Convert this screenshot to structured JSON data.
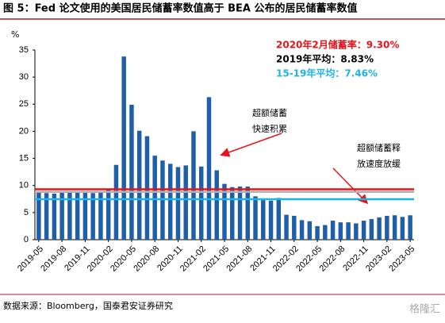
{
  "chart_data": {
    "type": "bar",
    "title": "图 5：Fed 论文使用的美国居民储蓄率数值高于 BEA 公布的居民储蓄率数值",
    "unit": "%",
    "source": "数据来源：Bloomberg，国泰君安证券研究",
    "watermark": "格隆汇",
    "categories": [
      "2019-05",
      null,
      null,
      "2019-08",
      null,
      null,
      "2019-11",
      null,
      null,
      "2020-02",
      null,
      null,
      "2020-05",
      null,
      null,
      "2020-08",
      null,
      null,
      "2020-11",
      null,
      null,
      "2021-02",
      null,
      null,
      "2021-05",
      null,
      null,
      "2021-08",
      null,
      null,
      "2021-11",
      null,
      null,
      "2022-02",
      null,
      null,
      "2022-05",
      null,
      null,
      "2022-08",
      null,
      null,
      "2022-11",
      null,
      null,
      "2023-02",
      null,
      null,
      "2023-05"
    ],
    "values": [
      8.8,
      8.6,
      8.5,
      8.7,
      8.8,
      8.7,
      8.7,
      8.6,
      8.9,
      9.2,
      13.8,
      33.8,
      24.9,
      20.1,
      19.1,
      15.5,
      14.6,
      14.0,
      13.4,
      13.7,
      20.0,
      13.5,
      26.3,
      12.8,
      10.3,
      9.7,
      9.8,
      9.8,
      8.0,
      7.3,
      7.2,
      7.7,
      4.6,
      4.4,
      3.6,
      3.4,
      2.5,
      2.7,
      3.5,
      3.2,
      3.2,
      3.0,
      3.5,
      3.8,
      4.1,
      4.4,
      4.5,
      4.2,
      4.5
    ],
    "color": "#1f5ea8",
    "ylim": [
      0,
      35
    ],
    "yticks": [
      0,
      5,
      10,
      15,
      20,
      25,
      30,
      35
    ],
    "reference_lines": [
      {
        "name": "2020年2月储蓄率：9.30%",
        "value": 9.3,
        "color": "#e8141c"
      },
      {
        "name": "2019年平均：8.83%",
        "value": 8.83,
        "color": "#b0b0b0"
      },
      {
        "name": "15-19年平均：7.46%",
        "value": 7.46,
        "color": "#1eb4e6"
      }
    ],
    "annotations": [
      {
        "lines": [
          "超额储蓄",
          "快速积累"
        ]
      },
      {
        "lines": [
          "超额储蓄释",
          "放速度放缓"
        ]
      }
    ]
  }
}
